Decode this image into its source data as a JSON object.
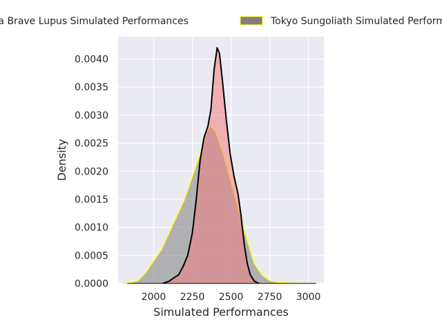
{
  "chart_data": {
    "type": "area",
    "title": "",
    "xlabel": "Simulated Performances",
    "ylabel": "Density",
    "xlim": [
      1770,
      3100
    ],
    "ylim": [
      0,
      0.0044
    ],
    "xticks": [
      2000,
      2250,
      2500,
      2750,
      3000
    ],
    "xtick_labels": [
      "2000",
      "2250",
      "2500",
      "2750",
      "3000"
    ],
    "yticks": [
      0,
      0.0005,
      0.001,
      0.0015,
      0.002,
      0.0025,
      0.003,
      0.0035,
      0.004
    ],
    "ytick_labels": [
      "0.0000",
      "0.0005",
      "0.0010",
      "0.0015",
      "0.0020",
      "0.0025",
      "0.0030",
      "0.0035",
      "0.0040"
    ],
    "grid": true,
    "legend_position": "top-center",
    "series": [
      {
        "name": "Chiba Brave Lupus Simulated Performances",
        "fill": "#f08080",
        "fill_opacity": 0.55,
        "stroke": "#000000",
        "points": [
          [
            2060,
            0
          ],
          [
            2100,
            4e-05
          ],
          [
            2130,
            0.0001
          ],
          [
            2160,
            0.00015
          ],
          [
            2190,
            0.0003
          ],
          [
            2220,
            0.0005
          ],
          [
            2250,
            0.0009
          ],
          [
            2275,
            0.0015
          ],
          [
            2300,
            0.0022
          ],
          [
            2325,
            0.0026
          ],
          [
            2350,
            0.0028
          ],
          [
            2370,
            0.0031
          ],
          [
            2390,
            0.0038
          ],
          [
            2410,
            0.0042
          ],
          [
            2425,
            0.0041
          ],
          [
            2445,
            0.0036
          ],
          [
            2470,
            0.0029
          ],
          [
            2495,
            0.0023
          ],
          [
            2520,
            0.0019
          ],
          [
            2545,
            0.0016
          ],
          [
            2565,
            0.0012
          ],
          [
            2585,
            0.0007
          ],
          [
            2605,
            0.00035
          ],
          [
            2625,
            0.00015
          ],
          [
            2650,
            4e-05
          ],
          [
            2680,
            0
          ]
        ]
      },
      {
        "name": "Tokyo Sungoliath Simulated Performances",
        "fill": "#808080",
        "fill_opacity": 0.55,
        "stroke": "#ffff00",
        "points": [
          [
            1800,
            0
          ],
          [
            1850,
            1e-05
          ],
          [
            1900,
            5e-05
          ],
          [
            1950,
            0.0002
          ],
          [
            2000,
            0.0004
          ],
          [
            2050,
            0.0006
          ],
          [
            2100,
            0.0009
          ],
          [
            2150,
            0.0012
          ],
          [
            2200,
            0.0015
          ],
          [
            2250,
            0.0019
          ],
          [
            2300,
            0.0023
          ],
          [
            2340,
            0.0027
          ],
          [
            2370,
            0.0028
          ],
          [
            2400,
            0.0027
          ],
          [
            2450,
            0.0023
          ],
          [
            2500,
            0.0018
          ],
          [
            2550,
            0.0013
          ],
          [
            2600,
            0.0008
          ],
          [
            2650,
            0.00035
          ],
          [
            2700,
            0.00015
          ],
          [
            2750,
            5e-05
          ],
          [
            2800,
            2e-05
          ],
          [
            2900,
            5e-06
          ],
          [
            3000,
            1e-06
          ],
          [
            3050,
            0
          ]
        ]
      }
    ]
  }
}
